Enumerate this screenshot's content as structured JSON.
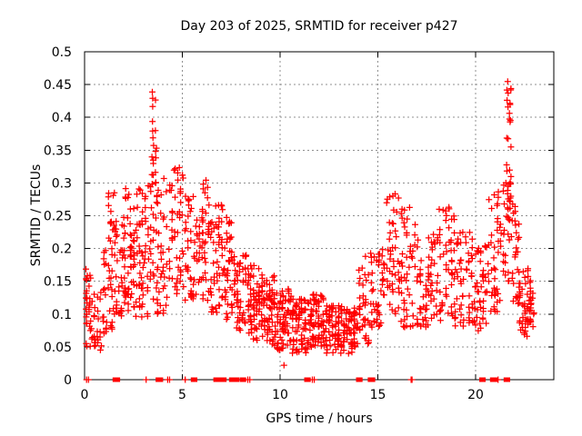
{
  "chart_data": {
    "type": "scatter",
    "title": "Day 203 of 2025, SRMTID for receiver p427",
    "xlabel": "GPS time / hours",
    "ylabel": "SRMTID / TECUs",
    "xlim": [
      0,
      24
    ],
    "ylim": [
      0,
      0.5
    ],
    "xtick_values": [
      0,
      5,
      10,
      15,
      20
    ],
    "xtick_labels": [
      "0",
      "5",
      "10",
      "15",
      "20"
    ],
    "ytick_values": [
      0,
      0.05,
      0.1,
      0.15,
      0.2,
      0.25,
      0.3,
      0.35,
      0.4,
      0.45,
      0.5
    ],
    "ytick_labels": [
      "0",
      "0.05",
      "0.1",
      "0.15",
      "0.2",
      "0.25",
      "0.3",
      "0.35",
      "0.4",
      "0.45",
      "0.5"
    ],
    "grid": true,
    "legend": "none",
    "marker": "plus",
    "marker_size": 7,
    "marker_color": "#ff0000",
    "grid_color": "#909090",
    "axis_color": "#000000",
    "background": "#ffffff",
    "seed": 2025203,
    "segment_format": [
      "hour_start",
      "hour_end",
      "num_points",
      "value_min_TECUs",
      "value_max_TECUs",
      "bias_exponent"
    ],
    "scatter_segments": [
      [
        0.02,
        0.35,
        30,
        0.05,
        0.175,
        1.0
      ],
      [
        0.3,
        0.9,
        26,
        0.045,
        0.135,
        1.1
      ],
      [
        0.9,
        1.45,
        32,
        0.07,
        0.2,
        1.1
      ],
      [
        1.15,
        1.55,
        12,
        0.21,
        0.285,
        1.0
      ],
      [
        1.45,
        2.1,
        44,
        0.09,
        0.25,
        1.1
      ],
      [
        2.0,
        2.6,
        50,
        0.1,
        0.295,
        1.1
      ],
      [
        2.6,
        3.3,
        55,
        0.09,
        0.3,
        1.1
      ],
      [
        3.3,
        3.75,
        25,
        0.12,
        0.31,
        1.0
      ],
      [
        3.4,
        3.75,
        22,
        0.295,
        0.445,
        1.3
      ],
      [
        3.7,
        4.4,
        40,
        0.1,
        0.33,
        1.2
      ],
      [
        4.4,
        5.1,
        45,
        0.13,
        0.335,
        1.2
      ],
      [
        5.1,
        5.8,
        45,
        0.12,
        0.28,
        1.2
      ],
      [
        5.8,
        6.4,
        45,
        0.12,
        0.315,
        1.2
      ],
      [
        6.4,
        7.1,
        50,
        0.1,
        0.27,
        1.2
      ],
      [
        7.1,
        7.6,
        40,
        0.09,
        0.255,
        1.1
      ],
      [
        7.6,
        8.3,
        50,
        0.07,
        0.19,
        1.1
      ],
      [
        8.3,
        9.0,
        60,
        0.06,
        0.175,
        1.1
      ],
      [
        9.0,
        9.8,
        70,
        0.05,
        0.16,
        1.1
      ],
      [
        9.8,
        10.6,
        70,
        0.045,
        0.14,
        1.1
      ],
      [
        10.6,
        11.5,
        75,
        0.04,
        0.125,
        1.0
      ],
      [
        11.5,
        12.3,
        70,
        0.045,
        0.13,
        1.0
      ],
      [
        12.3,
        13.2,
        75,
        0.04,
        0.115,
        1.0
      ],
      [
        13.2,
        14.0,
        60,
        0.04,
        0.11,
        1.0
      ],
      [
        14.0,
        14.6,
        35,
        0.055,
        0.19,
        1.1
      ],
      [
        14.6,
        15.4,
        45,
        0.08,
        0.2,
        1.1
      ],
      [
        15.4,
        16.15,
        45,
        0.1,
        0.285,
        1.1
      ],
      [
        16.15,
        17.1,
        55,
        0.08,
        0.265,
        1.2
      ],
      [
        17.1,
        18.1,
        60,
        0.08,
        0.225,
        1.1
      ],
      [
        18.1,
        19.0,
        55,
        0.08,
        0.265,
        1.2
      ],
      [
        19.0,
        19.9,
        50,
        0.08,
        0.225,
        1.1
      ],
      [
        19.9,
        20.6,
        45,
        0.07,
        0.205,
        1.1
      ],
      [
        20.6,
        21.35,
        45,
        0.1,
        0.3,
        1.2
      ],
      [
        21.35,
        21.9,
        28,
        0.14,
        0.31,
        1.0
      ],
      [
        21.55,
        21.85,
        30,
        0.26,
        0.458,
        1.2
      ],
      [
        21.85,
        22.25,
        26,
        0.11,
        0.27,
        1.1
      ],
      [
        22.2,
        22.85,
        55,
        0.065,
        0.17,
        1.0
      ],
      [
        22.8,
        23.0,
        8,
        0.08,
        0.145,
        1.0
      ]
    ],
    "stray_points": [
      [
        10.2,
        0.022
      ]
    ],
    "zero_square_hours": [
      1.55,
      1.7,
      3.75,
      3.9,
      5.55,
      5.65,
      6.7,
      6.85,
      7.0,
      7.15,
      7.5,
      7.65,
      7.8,
      8.05,
      8.15,
      11.35,
      11.45,
      14.0,
      14.1,
      14.6,
      14.75,
      20.3,
      20.4,
      20.85,
      21.0,
      21.55,
      21.65
    ],
    "zero_plus_hours": [
      0.1,
      0.2,
      3.15,
      4.25,
      4.35,
      5.15,
      8.35,
      8.45,
      11.65,
      11.75,
      16.7,
      16.75,
      21.15
    ]
  }
}
